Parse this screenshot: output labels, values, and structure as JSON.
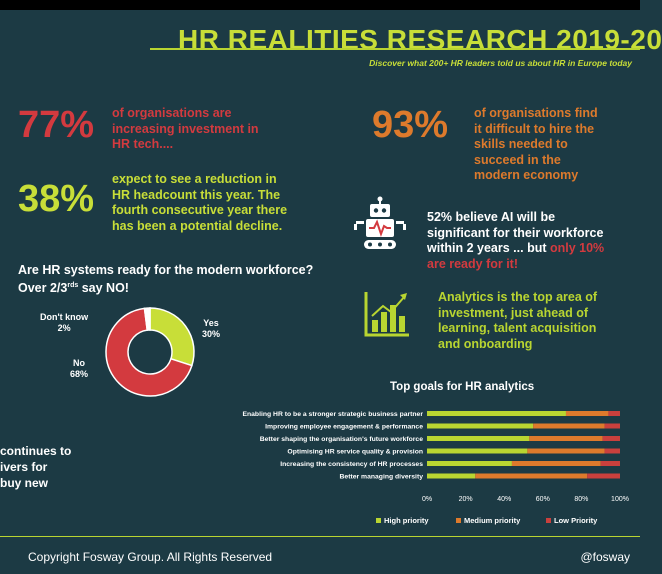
{
  "header": {
    "title": "HR REALITIES RESEARCH 2019-20",
    "subtitle": "Discover what 200+ HR leaders told us about HR in Europe today"
  },
  "stats": {
    "s77": {
      "value": "77%",
      "text": "of organisations are increasing investment in HR tech...."
    },
    "s93": {
      "value": "93%",
      "text": "of organisations find it difficult to hire the skills needed to succeed in the modern economy"
    },
    "s38": {
      "value": "38%",
      "text": "expect to see a reduction in HR headcount this year. The fourth consecutive year there has been a potential decline."
    },
    "ai": {
      "text_a": "52% believe AI will be significant for their workforce within 2 years",
      "text_b": "... but ",
      "text_c": "only 10% are ready for it!"
    },
    "analytics": {
      "text": "Analytics is the top area of investment, just ahead of learning, talent acquisition and onboarding"
    }
  },
  "question": {
    "line1": "Are HR systems ready for the modern workforce?",
    "line2": "Over 2/3",
    "sup": "rds",
    "line2_end": " say NO!"
  },
  "pie": {
    "slices": [
      {
        "label": "Yes",
        "pct_label": "30%",
        "value": 30,
        "color": "#c8de38"
      },
      {
        "label": "No",
        "pct_label": "68%",
        "value": 68,
        "color": "#d33a3f"
      },
      {
        "label": "Don't know",
        "pct_label": "2%",
        "value": 2,
        "color": "#ffffff"
      }
    ]
  },
  "cut_off": {
    "line1": "continues to",
    "line2": "ivers for",
    "line3": "buy new"
  },
  "chart_data": {
    "type": "bar",
    "stacked": true,
    "orientation": "horizontal",
    "title": "Top goals for HR analytics",
    "categories": [
      "Enabling HR to be a stronger strategic business partner",
      "Improving employee engagement & performance",
      "Better shaping the organisation's future workforce",
      "Optimising HR service quality & provision",
      "Increasing the consistency of HR processes",
      "Better managing diversity"
    ],
    "series": [
      {
        "name": "High priority",
        "color": "#b9d531",
        "values": [
          72,
          55,
          53,
          52,
          44,
          25
        ]
      },
      {
        "name": "Medium priority",
        "color": "#dd7a2c",
        "values": [
          22,
          37,
          38,
          40,
          46,
          58
        ]
      },
      {
        "name": "Low Priority",
        "color": "#c9403d",
        "values": [
          6,
          8,
          9,
          8,
          10,
          17
        ]
      }
    ],
    "xticks": [
      "0%",
      "20%",
      "40%",
      "60%",
      "80%",
      "100%"
    ],
    "xlim": [
      0,
      100
    ],
    "legend": "bottom"
  },
  "footer": {
    "copyright": "Copyright Fosway Group.  All Rights Reserved",
    "handle": "@fosway"
  },
  "colors": {
    "background": "#1c3a44",
    "accent_green": "#c8de38",
    "accent_red": "#d33a3f",
    "accent_orange": "#dd7a2c"
  }
}
